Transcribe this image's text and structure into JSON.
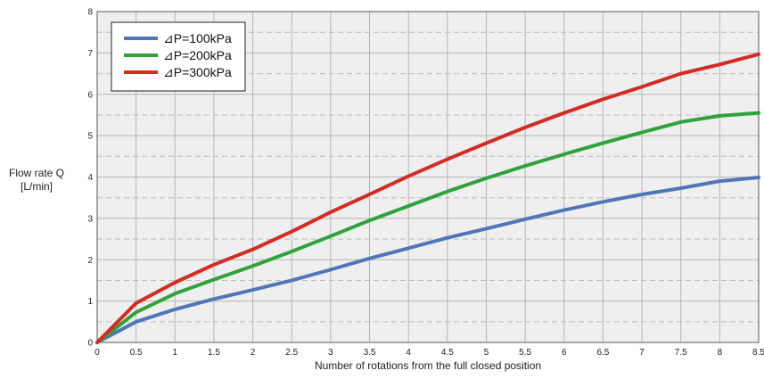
{
  "chart_data": {
    "type": "line",
    "title": "",
    "xlabel": "Number of rotations from the full closed position",
    "ylabel_lines": [
      "Flow rate Q",
      "[L/min]"
    ],
    "xlim": [
      0,
      8.5
    ],
    "ylim": [
      0,
      8
    ],
    "x_ticks": [
      "0",
      "0.5",
      "1",
      "1.5",
      "2",
      "2.5",
      "3",
      "3.5",
      "4",
      "4.5",
      "5",
      "5.5",
      "6",
      "6.5",
      "7",
      "7.5",
      "8",
      "8.5"
    ],
    "y_ticks": [
      "0",
      "1",
      "2",
      "3",
      "4",
      "5",
      "6",
      "7",
      "8"
    ],
    "grid": true,
    "legend_position": "top-left",
    "series": [
      {
        "name": "⊿P=100kPa",
        "color": "#4f77b8",
        "x": [
          0,
          0.5,
          1,
          1.5,
          2,
          2.5,
          3,
          3.5,
          4,
          4.5,
          5,
          5.5,
          6,
          6.5,
          7,
          7.5,
          8,
          8.5
        ],
        "y": [
          0,
          0.5,
          0.8,
          1.05,
          1.27,
          1.5,
          1.76,
          2.03,
          2.28,
          2.53,
          2.75,
          2.98,
          3.2,
          3.4,
          3.58,
          3.73,
          3.9,
          3.99
        ]
      },
      {
        "name": "⊿P=200kPa",
        "color": "#2fa33a",
        "x": [
          0,
          0.5,
          1,
          1.5,
          2,
          2.5,
          3,
          3.5,
          4,
          4.5,
          5,
          5.5,
          6,
          6.5,
          7,
          7.5,
          8,
          8.5
        ],
        "y": [
          0,
          0.73,
          1.18,
          1.52,
          1.85,
          2.2,
          2.57,
          2.95,
          3.3,
          3.65,
          3.97,
          4.27,
          4.55,
          4.82,
          5.08,
          5.33,
          5.48,
          5.55
        ]
      },
      {
        "name": "⊿P=300kPa",
        "color": "#d42b23",
        "x": [
          0,
          0.5,
          1,
          1.5,
          2,
          2.5,
          3,
          3.5,
          4,
          4.5,
          5,
          5.5,
          6,
          6.5,
          7,
          7.5,
          8,
          8.5
        ],
        "y": [
          0,
          0.95,
          1.45,
          1.88,
          2.25,
          2.68,
          3.15,
          3.58,
          4.02,
          4.43,
          4.82,
          5.2,
          5.55,
          5.88,
          6.18,
          6.5,
          6.72,
          6.97
        ]
      }
    ]
  }
}
